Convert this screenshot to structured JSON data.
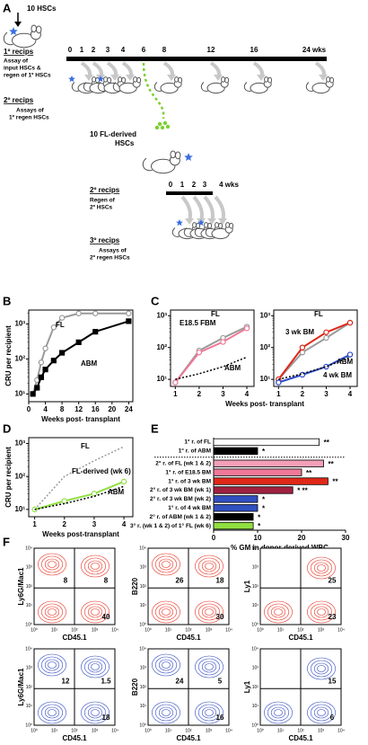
{
  "panel_labels": [
    "A",
    "B",
    "C",
    "D",
    "E",
    "F"
  ],
  "diagram": {
    "input": "10 HSCs",
    "primary": {
      "title": "1º recips",
      "lines": [
        "Assay of",
        "input HSCs &",
        "regen of 1º HSCs"
      ]
    },
    "timeline1": {
      "ticks": [
        "0",
        "1",
        "2",
        "3",
        "4",
        "6",
        "8",
        "12",
        "16"
      ],
      "end": "24 wks"
    },
    "secondary": {
      "title": "2º recips",
      "lines": [
        "Assays of",
        "1º regen HSCs"
      ]
    },
    "transfer": [
      "10 FL-derived",
      "HSCs"
    ],
    "secondary_regen": {
      "title": "2º recips",
      "lines": [
        "Regen of",
        "2º HSCs"
      ]
    },
    "timeline2": {
      "ticks": [
        "0",
        "1",
        "2",
        "3"
      ],
      "end": "4 wks"
    },
    "tertiary": {
      "title": "3º recips",
      "lines": [
        "Assays of",
        "2º regen HSCs"
      ]
    }
  },
  "chart_data": [
    {
      "type": "line",
      "ylog": true,
      "ylabel": "CRU per recipient",
      "xlabel": "Weeks post- transplant",
      "x": [
        1,
        2,
        3,
        4,
        6,
        8,
        12,
        16,
        24
      ],
      "xlim": [
        0,
        25
      ],
      "xticks": [
        0,
        4,
        8,
        12,
        16,
        20,
        24
      ],
      "ylim": [
        6,
        2500
      ],
      "yticks": [
        {
          "value": 10,
          "label": "10¹"
        },
        {
          "value": 100,
          "label": "10²"
        },
        {
          "value": 1000,
          "label": "10³"
        }
      ],
      "series": [
        {
          "name": "FL",
          "color": "#9a9a9a",
          "marker": "circle",
          "values": [
            10,
            25,
            80,
            200,
            800,
            1500,
            2000,
            2000,
            2000
          ]
        },
        {
          "name": "ABM",
          "color": "#000000",
          "marker": "square",
          "values": [
            10,
            15,
            30,
            50,
            90,
            150,
            300,
            600,
            1200
          ]
        }
      ]
    },
    {
      "type": "line",
      "ylog": true,
      "xlabel": "Weeks post- transplant",
      "x": [
        1,
        2,
        3,
        4
      ],
      "xlim": [
        0.8,
        4.3
      ],
      "xticks": [
        1,
        2,
        3,
        4
      ],
      "ylim": [
        6,
        1500
      ],
      "yticks": [
        {
          "value": 10,
          "label": "10¹"
        },
        {
          "value": 100,
          "label": "10²"
        },
        {
          "value": 1000,
          "label": "10³"
        }
      ],
      "series": [
        {
          "name": "FL",
          "color": "#9a9a9a",
          "marker": "circle",
          "values": [
            8,
            80,
            200,
            450
          ]
        },
        {
          "name": "E18.5 FBM",
          "color": "#f07898",
          "marker": "circle",
          "values": [
            8,
            70,
            150,
            400
          ]
        },
        {
          "name": "ABM",
          "color": "#000000",
          "dash": true,
          "values": [
            10,
            15,
            25,
            50
          ]
        }
      ]
    },
    {
      "type": "line",
      "ylog": true,
      "x": [
        1,
        2,
        3,
        4
      ],
      "xlim": [
        0.8,
        4.3
      ],
      "xticks": [
        1,
        2,
        3,
        4
      ],
      "ylim": [
        6,
        1500
      ],
      "yticks": [
        {
          "value": 10,
          "label": "10¹"
        },
        {
          "value": 100,
          "label": "10²"
        },
        {
          "value": 1000,
          "label": "10³"
        }
      ],
      "series": [
        {
          "name": "FL",
          "color": "#9a9a9a",
          "marker": "circle",
          "values": [
            10,
            70,
            200,
            600
          ]
        },
        {
          "name": "3 wk BM",
          "color": "#e02818",
          "marker": "circle",
          "values": [
            10,
            100,
            300,
            600
          ]
        },
        {
          "name": "4 wk BM",
          "color": "#2848c8",
          "marker": "circle",
          "values": [
            8,
            14,
            25,
            60
          ]
        },
        {
          "name": "ABM",
          "color": "#000000",
          "dash": true,
          "values": [
            10,
            15,
            25,
            50
          ]
        }
      ]
    },
    {
      "type": "line",
      "ylog": true,
      "ylabel": "CRU per recipient",
      "xlabel": "Weeks post-transplant",
      "x": [
        1,
        2,
        3,
        4
      ],
      "xlim": [
        0.8,
        4.3
      ],
      "xticks": [
        1,
        2,
        3,
        4
      ],
      "ylim": [
        6,
        1500
      ],
      "yticks": [
        {
          "value": 10,
          "label": "10¹"
        },
        {
          "value": 100,
          "label": "10²"
        },
        {
          "value": 1000,
          "label": "10³"
        }
      ],
      "series": [
        {
          "name": "FL",
          "color": "#9a9a9a",
          "dash": true,
          "values": [
            10,
            100,
            300,
            800
          ]
        },
        {
          "name": "FL-derived (wk 6)",
          "color": "#90e040",
          "marker": "circle",
          "values": [
            10,
            18,
            30,
            70
          ]
        },
        {
          "name": "ABM",
          "color": "#000000",
          "dash": true,
          "values": [
            10,
            15,
            25,
            50
          ]
        }
      ]
    },
    {
      "type": "hbar",
      "xlabel": "% GM in donor-derived WBC",
      "xlim": [
        0,
        30
      ],
      "xticks": [
        0,
        10,
        20,
        30
      ],
      "categories": [
        "1° r. of FL",
        "1° r. of ABM",
        "2° r. of FL (wk 1 & 2)",
        "1° r. of E18.5 BM",
        "1° r. of 3 wk BM",
        "2° r. of 3 wk BM (wk 1)",
        "2° r. of 3 wk BM (wk 2)",
        "1° r. of 4 wk BM",
        "2° r. of ABM (wk 1 & 2)",
        "3° r. (wk 1 & 2) of 1° FL (wk 6)"
      ],
      "values": [
        24,
        10,
        25,
        20,
        26,
        18,
        10,
        10,
        9,
        9
      ],
      "colors": [
        "#ffffff",
        "#000000",
        "#f4a0b8",
        "#f07898",
        "#e02818",
        "#a02040",
        "#3050c0",
        "#3050c0",
        "#000000",
        "#90e040"
      ],
      "significance": [
        "**",
        "*",
        "**",
        "**",
        "**",
        "* **",
        "*",
        "*",
        "*",
        "*"
      ]
    }
  ],
  "flow": {
    "axis_ticks": [
      "10⁰",
      "10¹",
      "10²",
      "10³",
      "10⁴"
    ],
    "plots": [
      {
        "ylabel": "Ly6G/Mac1",
        "xlabel": "CD45.1",
        "color": "#e83020",
        "quadrants": {
          "upper-left": 8,
          "upper-right": 8,
          "lower-right": 40
        }
      },
      {
        "ylabel": "B220",
        "xlabel": "CD45.1",
        "color": "#e83020",
        "quadrants": {
          "upper-left": 26,
          "upper-right": 18,
          "lower-right": 30
        }
      },
      {
        "ylabel": "Ly1",
        "xlabel": "CD45.1",
        "color": "#e83020",
        "quadrants": {
          "upper-right": 25,
          "lower-right": 23
        }
      },
      {
        "ylabel": "Ly6G/Mac1",
        "xlabel": "CD45.1",
        "color": "#3048c0",
        "quadrants": {
          "upper-left": 12,
          "upper-right": 1.5,
          "lower-right": 18
        }
      },
      {
        "ylabel": "B220",
        "xlabel": "CD45.1",
        "color": "#3048c0",
        "quadrants": {
          "upper-left": 24,
          "upper-right": 5,
          "lower-right": 16
        }
      },
      {
        "ylabel": "Ly1",
        "xlabel": "CD45.1",
        "color": "#3048c0",
        "quadrants": {
          "upper-right": 15,
          "lower-right": 6
        }
      }
    ]
  }
}
